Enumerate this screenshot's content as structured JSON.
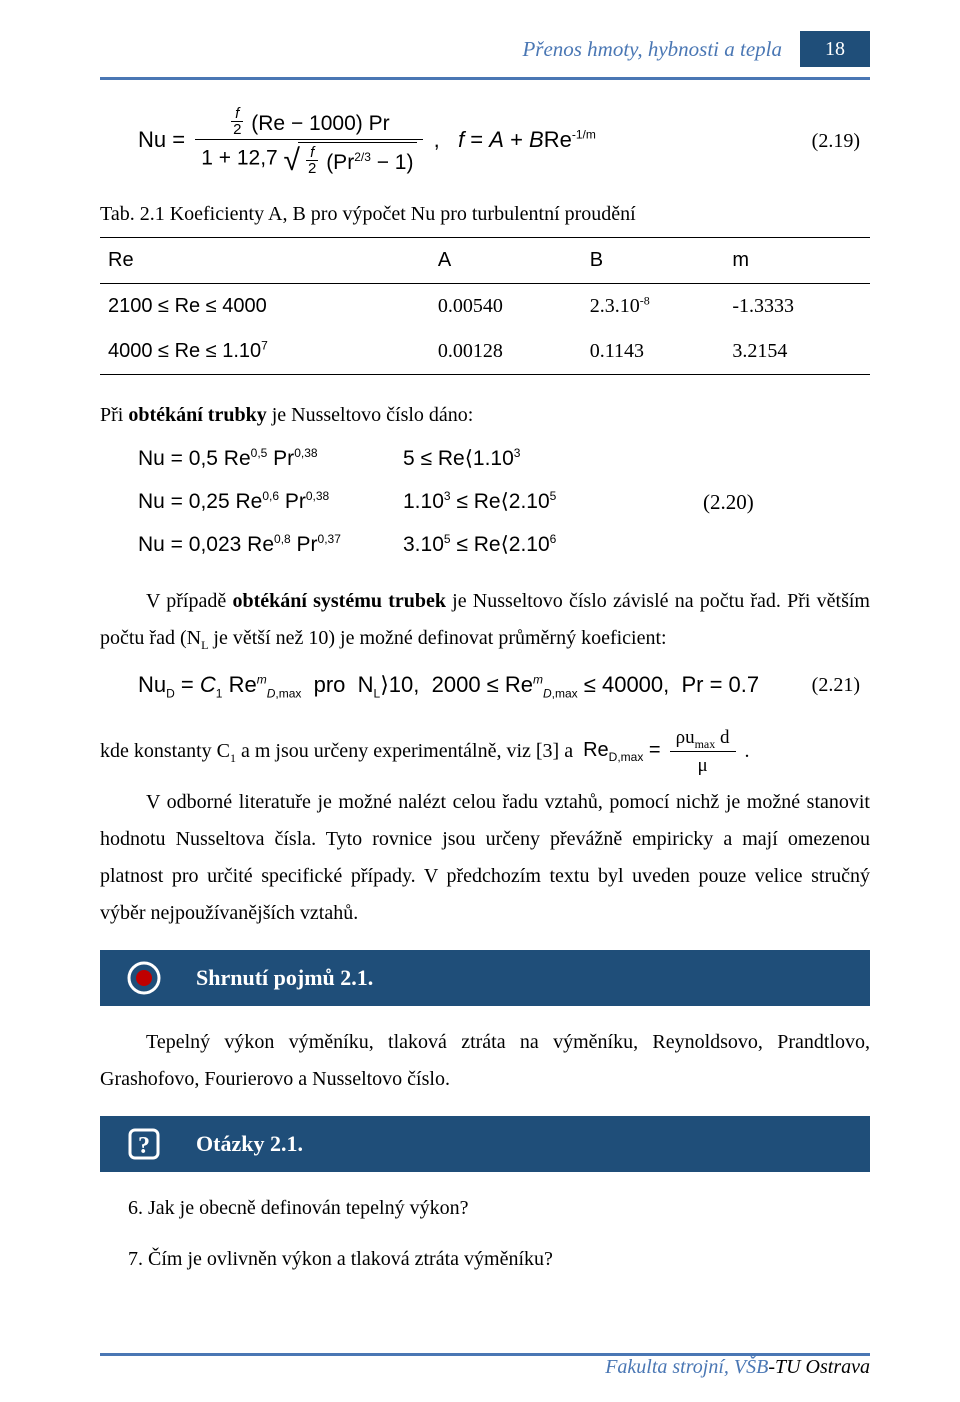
{
  "header": {
    "running_title": "Přenos hmoty, hybnosti a tepla",
    "page_no": "18",
    "accent_color": "#4a77b4",
    "badge_bg": "#1f4e79"
  },
  "eq219": {
    "lhs_text_prefix": "Nu =",
    "numerator_html": "<span class='sfrac'><span class='num it'>f</span><span class='den'>2</span></span> (Re − 1000) Pr",
    "denominator_html": "1 + 12,7 <span class='sqrt'><span class='rad'><span class='sfrac'><span class='num it'>f</span><span class='den'>2</span></span> (Pr<sup>2/3</sup> − 1)</span></span>",
    "rhs_html": ", &nbsp; <span class='it'>f</span> = <span class='it'>A</span> + <span class='it'>B</span>Re<sup>-1/m</sup>",
    "number": "(2.19)"
  },
  "table": {
    "caption": "Tab. 2.1 Koeficienty A, B pro výpočet Nu pro turbulentní proudění",
    "columns": [
      "Re",
      "A",
      "B",
      "m"
    ],
    "rows": [
      [
        "2100 ≤ Re ≤ 4000",
        "0.00540",
        "2.3.10<sup>-8</sup>",
        "-1.3333"
      ],
      [
        "4000 ≤ Re ≤ 1.10<sup>7</sup>",
        "0.00128",
        "0.1143",
        "3.2154"
      ]
    ]
  },
  "section_obtekani": {
    "intro_html": "Při <b>obtékání trubky</b> je Nusseltovo číslo dáno:",
    "rows": [
      {
        "lhs": "Nu = 0,5 Re<sup>0,5</sup> Pr<sup>0,38</sup>",
        "rhs": "5 ≤ Re⟨1.10<sup>3</sup>",
        "num": ""
      },
      {
        "lhs": "Nu = 0,25 Re<sup>0,6</sup> Pr<sup>0,38</sup>",
        "rhs": "1.10<sup>3</sup> ≤ Re⟨2.10<sup>5</sup>",
        "num": "(2.20)"
      },
      {
        "lhs": "Nu = 0,023 Re<sup>0,8</sup> Pr<sup>0,37</sup>",
        "rhs": "3.10<sup>5</sup> ≤ Re⟨2.10<sup>6</sup>",
        "num": ""
      }
    ]
  },
  "para1_html": "V případě <b>obtékání systému trubek</b> je Nusseltovo číslo závislé na počtu řad. Při větším počtu řad (N<sub>L</sub> je větší než 10) je možné definovat průměrný koeficient:",
  "eq221": {
    "html": "Nu<sub>D</sub> = <span class='it'>C</span><sub>1</sub> Re<sup class='it'>m</sup><sub><span class='it'>D</span>,max</sub>&nbsp; pro&nbsp; N<sub>L</sub>⟩10,&nbsp; 2000 ≤ Re<sup class='it'>m</sup><sub><span class='it'>D</span>,max</sub> ≤ 40000,&nbsp; Pr = 0.7",
    "number": "(2.21)"
  },
  "para2_html": "kde konstanty C<sub>1</sub> a m jsou určeny experimentálně, viz [3] a&nbsp; <span class='sans'>Re<sub>D,max</sub> =</span> <span class='frac' style='font-size:19px'><span class='num'><span class='it'>ρ</span>u<sub>max</sub> d</span><span class='den it'>μ</span></span> .",
  "para3": "V odborné literatuře je možné nalézt celou řadu vztahů, pomocí nichž je možné stanovit hodnotu Nusseltova čísla. Tyto rovnice jsou určeny převážně empiricky a mají omezenou platnost pro určité specifické případy. V předchozím textu byl uveden pouze velice stručný výběr nejpoužívanějších vztahů.",
  "summary": {
    "title": "Shrnutí pojmů 2.1.",
    "body": "Tepelný výkon výměníku, tlaková ztráta na výměníku, Reynoldsovo, Prandtlovo, Grashofovo, Fourierovo a Nusseltovo číslo."
  },
  "questions": {
    "title": "Otázky 2.1.",
    "items": [
      "6.  Jak je obecně definován tepelný výkon?",
      "7.  Čím je ovlivněn výkon a tlaková ztráta výměníku?"
    ]
  },
  "footer": {
    "blue": "Fakulta strojní, ",
    "vsb": "VŠB",
    "rest": "-TU Ostrava"
  }
}
